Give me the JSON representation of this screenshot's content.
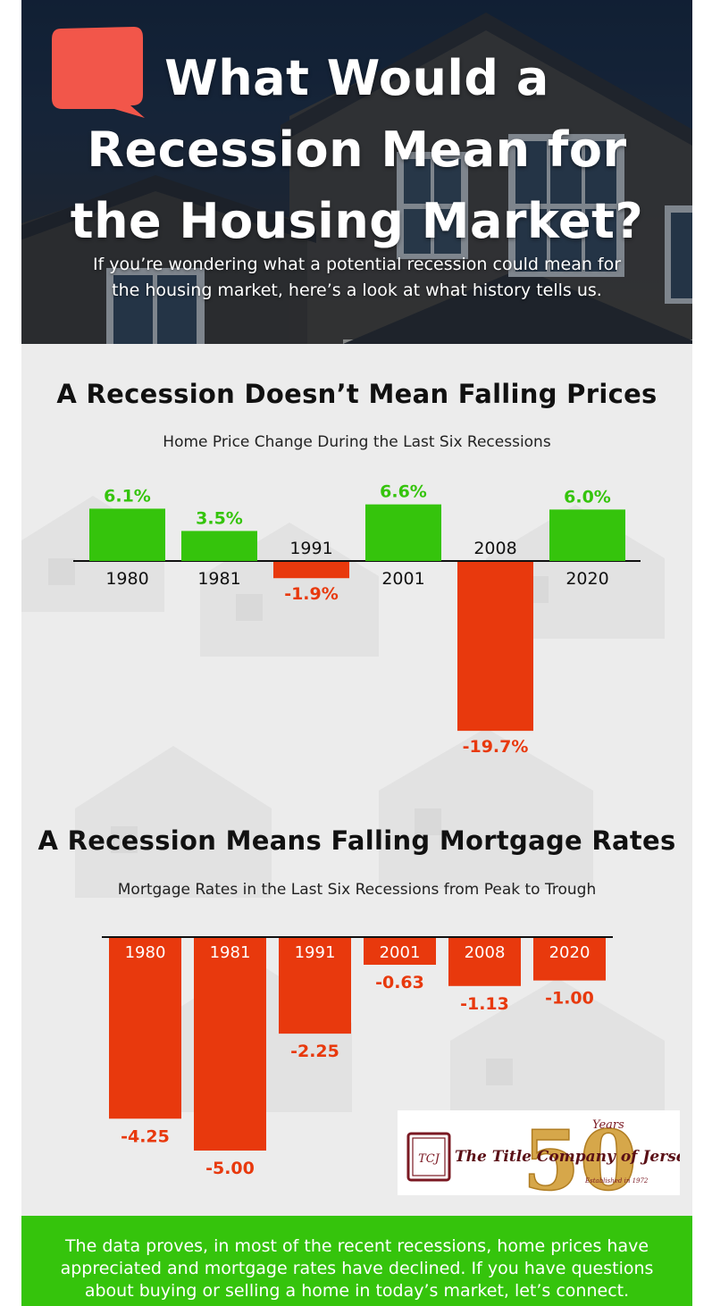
{
  "header": {
    "title_lines": [
      "What Would a",
      "Recession Mean for",
      "the Housing Market?"
    ],
    "intro_lines": [
      "If you’re wondering what a potential recession could mean for",
      "the housing market, here’s a look at what history tells us."
    ]
  },
  "section1": {
    "title": "A Recession Doesn’t Mean Falling Prices",
    "subtitle": "Home Price Change During the Last Six Recessions"
  },
  "section2": {
    "title": "A Recession Means Falling Mortgage Rates",
    "subtitle": "Mortgage Rates in the Last Six Recessions from Peak to Trough"
  },
  "logo": {
    "emblem_initials": "TCJ",
    "big_number": "50",
    "years_word": "Years",
    "company_name": "The Title Company of Jersey",
    "established": "Established in 1972"
  },
  "footer": {
    "lines": [
      "The data proves, in most of the recent recessions, home prices have",
      "appreciated and mortgage rates have declined. If you have questions",
      "about buying or selling a home in today’s market, let’s connect."
    ]
  },
  "colors": {
    "positive": "#35c40c",
    "negative": "#e8390d",
    "footer_bg": "#35c40c",
    "bubble": "#f2564a"
  },
  "icons": {
    "header_badge": "speech-bubble-icon"
  },
  "chart_data": [
    {
      "type": "bar",
      "categories": [
        "1980",
        "1981",
        "1991",
        "2001",
        "2008",
        "2020"
      ],
      "values": [
        6.1,
        3.5,
        -1.9,
        6.6,
        -19.7,
        6.0
      ],
      "value_labels": [
        "6.1%",
        "3.5%",
        "-1.9%",
        "6.6%",
        "-19.7%",
        "6.0%"
      ],
      "unit": "%",
      "ylim": [
        -19.7,
        6.6
      ],
      "grid": false,
      "legend": "none"
    },
    {
      "type": "bar",
      "categories": [
        "1980",
        "1981",
        "1991",
        "2001",
        "2008",
        "2020"
      ],
      "values": [
        -4.25,
        -5.0,
        -2.25,
        -0.63,
        -1.13,
        -1.0
      ],
      "value_labels": [
        "-4.25",
        "-5.00",
        "-2.25",
        "-0.63",
        "-1.13",
        "-1.00"
      ],
      "ylim": [
        -5.0,
        0
      ],
      "grid": false,
      "legend": "none"
    }
  ]
}
